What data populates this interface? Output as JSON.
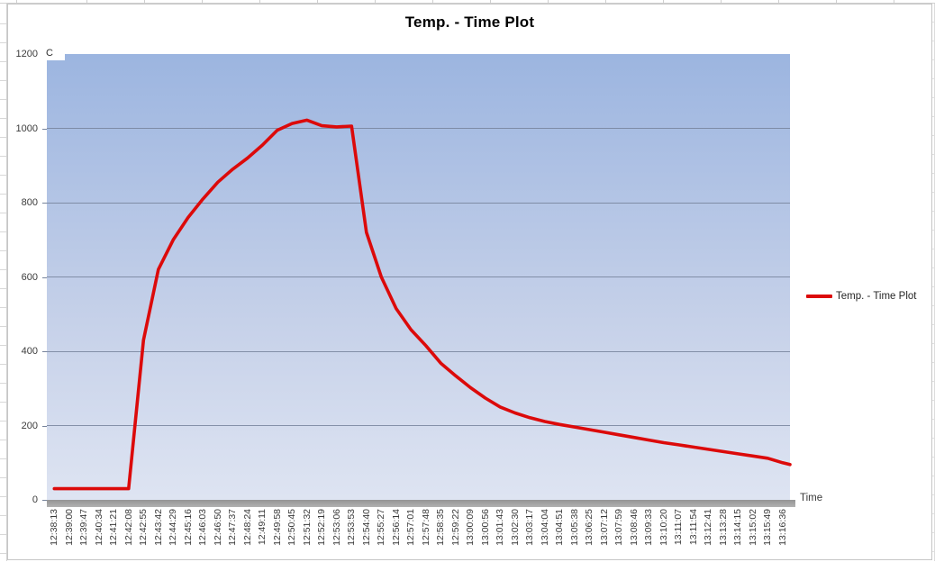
{
  "chart_data": {
    "type": "line",
    "title": "Temp. - Time Plot",
    "xlabel": "Time",
    "ylabel": "C",
    "ylim": [
      0,
      1200
    ],
    "y_ticks": [
      0,
      200,
      400,
      600,
      800,
      1000,
      1200
    ],
    "grid": true,
    "legend_position": "right",
    "categories": [
      "12:38:13",
      "12:39:00",
      "12:39:47",
      "12:40:34",
      "12:41:21",
      "12:42:08",
      "12:42:55",
      "12:43:42",
      "12:44:29",
      "12:45:16",
      "12:46:03",
      "12:46:50",
      "12:47:37",
      "12:48:24",
      "12:49:11",
      "12:49:58",
      "12:50:45",
      "12:51:32",
      "12:52:19",
      "12:53:06",
      "12:53:53",
      "12:54:40",
      "12:55:27",
      "12:56:14",
      "12:57:01",
      "12:57:48",
      "12:58:35",
      "12:59:22",
      "13:00:09",
      "13:00:56",
      "13:01:43",
      "13:02:30",
      "13:03:17",
      "13:04:04",
      "13:04:51",
      "13:05:38",
      "13:06:25",
      "13:07:12",
      "13:07:59",
      "13:08:46",
      "13:09:33",
      "13:10:20",
      "13:11:07",
      "13:11:54",
      "13:12:41",
      "13:13:28",
      "13:14:15",
      "13:15:02",
      "13:15:49",
      "13:16:36"
    ],
    "series": [
      {
        "name": "Temp. - Time Plot",
        "color": "#dc0a0a",
        "values": [
          30,
          30,
          30,
          30,
          30,
          30,
          430,
          620,
          700,
          760,
          810,
          855,
          890,
          920,
          955,
          995,
          1013,
          1022,
          1007,
          1004,
          1006,
          720,
          600,
          515,
          458,
          415,
          368,
          334,
          302,
          274,
          250,
          234,
          221,
          211,
          203,
          196,
          189,
          182,
          175,
          168,
          161,
          154,
          148,
          142,
          136,
          130,
          124,
          118,
          112,
          100
        ]
      }
    ],
    "plot_gradient": [
      "#9cb5e0",
      "#c6d1e9",
      "#dee4f2"
    ],
    "gridline_color": "#76839b",
    "axis_band_color": "#a1a1a1"
  }
}
